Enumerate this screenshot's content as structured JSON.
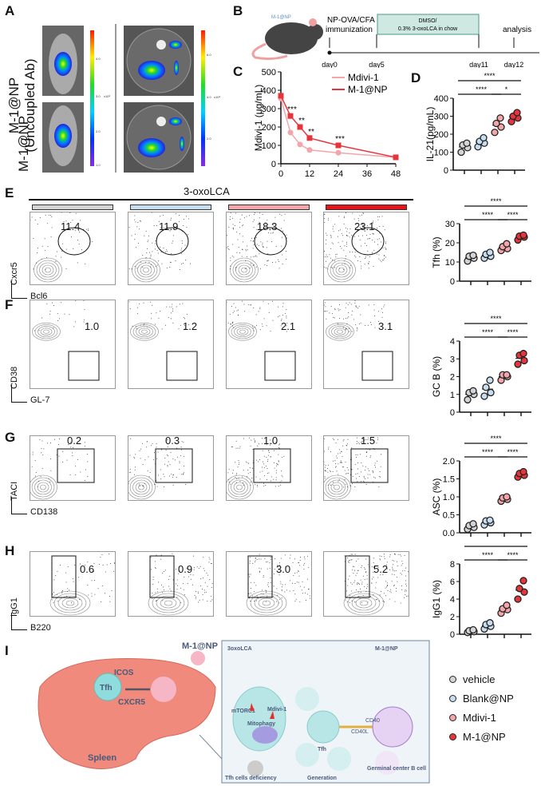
{
  "panels": {
    "A": "A",
    "B": "B",
    "C": "C",
    "D": "D",
    "E": "E",
    "F": "F",
    "G": "G",
    "H": "H",
    "I": "I"
  },
  "colors": {
    "vehicle": "#d4d4d4",
    "blank": "#c7def1",
    "mdivi": "#f3a5aa",
    "m1np": "#e6343d",
    "box_fill": "#cfe9e2",
    "box_stroke": "#4a9c86"
  },
  "panelA": {
    "row_labels": [
      "M-1@NP",
      "(Uncoupled Ab)",
      "M-1@NP"
    ],
    "colorbar_left": [
      "4.0",
      "3.0",
      "2.0",
      "1.0"
    ],
    "colorbar_right": [
      "6.0",
      "4.0",
      "2.0"
    ],
    "colorbar_unit": "x10⁸"
  },
  "panelB": {
    "mouse_label": "M-1@NP",
    "immunization": [
      "NP-OVA/CFA",
      "immunization"
    ],
    "treatment": [
      "DMSO/",
      "0.3% 3-oxoLCA in chow"
    ],
    "analysis": "analysis",
    "days": [
      "day0",
      "day5",
      "day11",
      "day12"
    ]
  },
  "chart_data": [
    {
      "id": "C",
      "type": "line",
      "ylabel": "Mdivi-1 (μg/mL)",
      "x": [
        0,
        4,
        8,
        12,
        24,
        48
      ],
      "xticks": [
        0,
        12,
        24,
        36,
        48
      ],
      "yticks": [
        0,
        100,
        200,
        300,
        400,
        500
      ],
      "ylim": [
        0,
        500
      ],
      "xlim": [
        0,
        48
      ],
      "series": [
        {
          "name": "Mdivi-1",
          "values": [
            355,
            170,
            105,
            75,
            60,
            35
          ],
          "color": "#f3a5aa"
        },
        {
          "name": "M-1@NP",
          "values": [
            370,
            260,
            200,
            140,
            100,
            35
          ],
          "color": "#e6343d"
        }
      ],
      "annotations": [
        {
          "x": 4,
          "text": "***"
        },
        {
          "x": 8,
          "text": "**"
        },
        {
          "x": 12,
          "text": "**"
        },
        {
          "x": 24,
          "text": "***"
        }
      ],
      "legend": "top-right"
    },
    {
      "id": "D",
      "type": "scatter",
      "ylabel": "IL-21(pg/mL)",
      "ylim": [
        0,
        400
      ],
      "yticks": [
        0,
        100,
        200,
        300,
        400
      ],
      "groups": [
        [
          100,
          125,
          140,
          150
        ],
        [
          130,
          150,
          160,
          180
        ],
        [
          210,
          240,
          260,
          290
        ],
        [
          270,
          290,
          300,
          320
        ]
      ],
      "sig": [
        {
          "a": 0,
          "b": 3,
          "text": "****"
        },
        {
          "a": 0,
          "b": 2,
          "text": "****"
        },
        {
          "a": 2,
          "b": 3,
          "text": "*"
        }
      ]
    },
    {
      "id": "Tfh",
      "type": "scatter",
      "ylabel": "Tfh (%)",
      "ylim": [
        0,
        30
      ],
      "yticks": [
        0,
        10,
        20,
        30
      ],
      "groups": [
        [
          10.5,
          12,
          13,
          13.5
        ],
        [
          12,
          13,
          14,
          15
        ],
        [
          16,
          17,
          18,
          19.5
        ],
        [
          21.5,
          23,
          23.5,
          24
        ]
      ],
      "sig": [
        {
          "a": 0,
          "b": 3,
          "text": "****"
        },
        {
          "a": 0,
          "b": 2,
          "text": "****"
        },
        {
          "a": 2,
          "b": 3,
          "text": "****"
        }
      ]
    },
    {
      "id": "GCB",
      "type": "scatter",
      "ylabel": "GC B (%)",
      "ylim": [
        0,
        4
      ],
      "yticks": [
        0,
        1,
        2,
        3,
        4
      ],
      "groups": [
        [
          0.7,
          1.0,
          1.1,
          1.2
        ],
        [
          0.9,
          1.1,
          1.4,
          1.8
        ],
        [
          1.8,
          2.0,
          2.1,
          2.1
        ],
        [
          2.7,
          2.9,
          3.2,
          3.3
        ]
      ],
      "sig": [
        {
          "a": 0,
          "b": 3,
          "text": "****"
        },
        {
          "a": 0,
          "b": 2,
          "text": "****"
        },
        {
          "a": 2,
          "b": 3,
          "text": "****"
        }
      ]
    },
    {
      "id": "ASC",
      "type": "scatter",
      "ylabel": "ASC (%)",
      "ylim": [
        0,
        2
      ],
      "yticks": [
        "0.0",
        "0.5",
        "1.0",
        "1.5",
        "2.0"
      ],
      "groups": [
        [
          0.1,
          0.15,
          0.2,
          0.25
        ],
        [
          0.22,
          0.28,
          0.33,
          0.35
        ],
        [
          0.88,
          0.93,
          0.97,
          1.0
        ],
        [
          1.55,
          1.6,
          1.65,
          1.7
        ]
      ],
      "sig": [
        {
          "a": 0,
          "b": 3,
          "text": "****"
        },
        {
          "a": 0,
          "b": 2,
          "text": "****"
        },
        {
          "a": 2,
          "b": 3,
          "text": "****"
        }
      ]
    },
    {
      "id": "IgG1",
      "type": "scatter",
      "ylabel": "IgG1 (%)",
      "ylim": [
        0,
        8
      ],
      "yticks": [
        0,
        2,
        4,
        6,
        8
      ],
      "groups": [
        [
          0.2,
          0.3,
          0.4,
          0.5
        ],
        [
          0.6,
          0.9,
          1.1,
          1.3
        ],
        [
          2.4,
          2.8,
          2.9,
          3.3
        ],
        [
          4.0,
          4.8,
          5.2,
          6.1
        ]
      ],
      "sig": [
        {
          "a": 0,
          "b": 3,
          "text": "****"
        },
        {
          "a": 0,
          "b": 2,
          "text": "****"
        },
        {
          "a": 2,
          "b": 3,
          "text": "****"
        }
      ]
    }
  ],
  "flow": {
    "header": "3-oxoLCA",
    "rows": [
      {
        "y_axis": "Cxcr5",
        "x_axis": "Bcl6",
        "values": [
          "11.4",
          "11.9",
          "18.3",
          "23.1"
        ],
        "gate": "ellipse"
      },
      {
        "y_axis": "CD38",
        "x_axis": "GL-7",
        "values": [
          "1.0",
          "1.2",
          "2.1",
          "3.1"
        ],
        "gate": "box-low"
      },
      {
        "y_axis": "TACI",
        "x_axis": "CD138",
        "values": [
          "0.2",
          "0.3",
          "1.0",
          "1.5"
        ],
        "gate": "box-high"
      },
      {
        "y_axis": "IgG1",
        "x_axis": "B220",
        "values": [
          "0.6",
          "0.9",
          "3.0",
          "5.2"
        ],
        "gate": "box-tall"
      }
    ]
  },
  "panelI": {
    "spleen_labels": {
      "tfh": "Tfh",
      "icos": "ICOS",
      "cxcr5": "CXCR5",
      "spleen": "Spleen",
      "m1np": "M-1@NP"
    },
    "inset": {
      "oxolca": "3oxoLCA",
      "m1np": "M-1@NP",
      "mtorc1": "mTORC1",
      "mdivi": "Mdivi-1",
      "mitophagy": "Mitophagy",
      "tfh": "Tfh",
      "cd40": "CD40",
      "cd40l": "CD40L",
      "deficiency": "Tfh cells deficiency",
      "generation": "Generation",
      "gc": "Germinal center B cell"
    }
  },
  "legend": [
    "vehicle",
    "Blank@NP",
    "Mdivi-1",
    "M-1@NP"
  ]
}
